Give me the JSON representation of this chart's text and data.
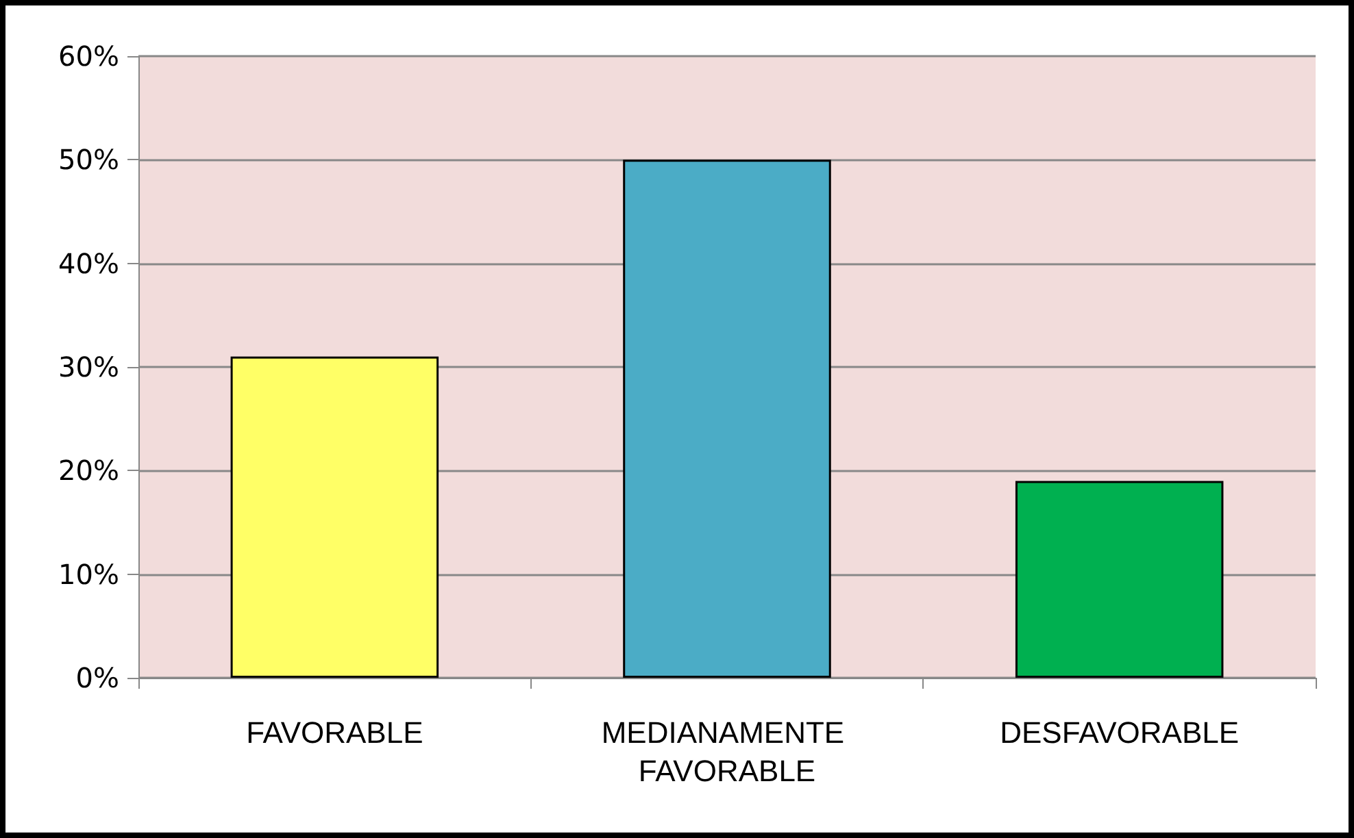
{
  "chart_data": {
    "type": "bar",
    "categories": [
      "FAVORABLE",
      "MEDIANAMENTE FAVORABLE",
      "DESFAVORABLE"
    ],
    "values": [
      31,
      50,
      19
    ],
    "colors": [
      "#ffff66",
      "#4bacc6",
      "#00b050"
    ],
    "ylim": [
      0,
      60
    ],
    "yticks": [
      {
        "value": 0,
        "label": "0%"
      },
      {
        "value": 10,
        "label": "10%"
      },
      {
        "value": 20,
        "label": "20%"
      },
      {
        "value": 30,
        "label": "30%"
      },
      {
        "value": 40,
        "label": "40%"
      },
      {
        "value": 50,
        "label": "50%"
      },
      {
        "value": 60,
        "label": "60%"
      }
    ],
    "grid": "y"
  }
}
